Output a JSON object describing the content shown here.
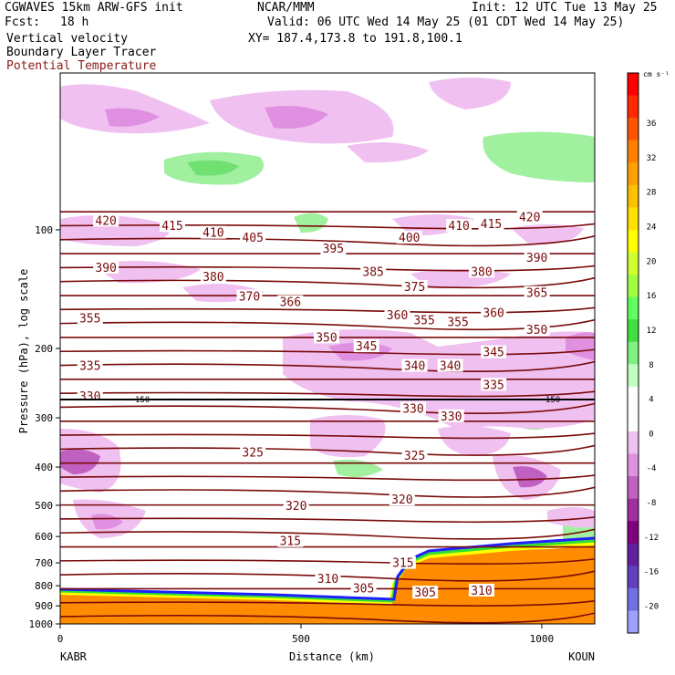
{
  "header": {
    "model": "CGWAVES 15km ARW-GFS init",
    "org": "NCAR/MMM",
    "init": "Init: 12 UTC Tue 13 May 25",
    "fcst_label": "Fcst:",
    "fcst_value": "18 h",
    "valid": "Valid: 06 UTC Wed 14 May 25 (01 CDT Wed 14 May 25)",
    "field1": "Vertical velocity",
    "field2": "Boundary Layer Tracer",
    "field3": "Potential Temperature",
    "xy": "XY= 187.4,173.8 to 191.8,100.1"
  },
  "colors": {
    "theta": "#7a0a0a",
    "tracer": "#ff8c00",
    "field3_text": "#8b1a1a"
  },
  "chart_data": {
    "type": "heatmap",
    "xlabel": "Distance (km)",
    "ylabel": "Pressure (hPa), log scale",
    "x_ticks": [
      "0",
      "500",
      "1000"
    ],
    "y_ticks": [
      "100",
      "200",
      "300",
      "400",
      "500",
      "600",
      "700",
      "800",
      "900",
      "1000"
    ],
    "xlim": [
      0,
      1110
    ],
    "ylim": [
      1000,
      40
    ],
    "y_scale": "log",
    "left_station": "KABR",
    "right_station": "KOUN",
    "colorbar": {
      "unit": "cm s⁻¹",
      "labels": [
        "36",
        "32",
        "28",
        "24",
        "20",
        "16",
        "12",
        "8",
        "4",
        "0",
        "-4",
        "-8",
        "-12",
        "-16",
        "-20"
      ],
      "colors": [
        "#ff0000",
        "#ff2a00",
        "#ff5500",
        "#ff8000",
        "#ffa000",
        "#ffc000",
        "#ffe000",
        "#ffff00",
        "#d0ff30",
        "#a0ff40",
        "#60ff60",
        "#40e040",
        "#80f080",
        "#c0ffc0",
        "#ffffff",
        "#ffffff",
        "#f0c0f0",
        "#e090e0",
        "#c060c0",
        "#a030a0",
        "#800080",
        "#6020a0",
        "#6040c0",
        "#7070e0",
        "#a0a0ff"
      ]
    },
    "theta_labels": [
      {
        "text": "420",
        "x": 95,
        "p": 95
      },
      {
        "text": "415",
        "x": 233,
        "p": 98
      },
      {
        "text": "410",
        "x": 318,
        "p": 102
      },
      {
        "text": "405",
        "x": 400,
        "p": 105
      },
      {
        "text": "400",
        "x": 725,
        "p": 105
      },
      {
        "text": "410",
        "x": 828,
        "p": 98
      },
      {
        "text": "415",
        "x": 895,
        "p": 97
      },
      {
        "text": "420",
        "x": 975,
        "p": 93
      },
      {
        "text": "395",
        "x": 567,
        "p": 112
      },
      {
        "text": "390",
        "x": 95,
        "p": 125
      },
      {
        "text": "380",
        "x": 318,
        "p": 132
      },
      {
        "text": "385",
        "x": 650,
        "p": 128
      },
      {
        "text": "380",
        "x": 875,
        "p": 128
      },
      {
        "text": "390",
        "x": 990,
        "p": 118
      },
      {
        "text": "375",
        "x": 736,
        "p": 140
      },
      {
        "text": "370",
        "x": 393,
        "p": 148
      },
      {
        "text": "366",
        "x": 478,
        "p": 153
      },
      {
        "text": "365",
        "x": 990,
        "p": 145
      },
      {
        "text": "360",
        "x": 700,
        "p": 165
      },
      {
        "text": "360",
        "x": 900,
        "p": 163
      },
      {
        "text": "355",
        "x": 62,
        "p": 168
      },
      {
        "text": "355",
        "x": 756,
        "p": 170
      },
      {
        "text": "355",
        "x": 826,
        "p": 172
      },
      {
        "text": "350",
        "x": 553,
        "p": 188
      },
      {
        "text": "350",
        "x": 990,
        "p": 180
      },
      {
        "text": "345",
        "x": 636,
        "p": 198
      },
      {
        "text": "345",
        "x": 900,
        "p": 205
      },
      {
        "text": "340",
        "x": 736,
        "p": 222
      },
      {
        "text": "340",
        "x": 810,
        "p": 222
      },
      {
        "text": "335",
        "x": 62,
        "p": 222
      },
      {
        "text": "335",
        "x": 900,
        "p": 248
      },
      {
        "text": "330",
        "x": 62,
        "p": 265
      },
      {
        "text": "330",
        "x": 733,
        "p": 285
      },
      {
        "text": "330",
        "x": 812,
        "p": 298
      },
      {
        "text": "325",
        "x": 400,
        "p": 368
      },
      {
        "text": "325",
        "x": 736,
        "p": 375
      },
      {
        "text": "320",
        "x": 490,
        "p": 503
      },
      {
        "text": "320",
        "x": 710,
        "p": 485
      },
      {
        "text": "315",
        "x": 478,
        "p": 618
      },
      {
        "text": "315",
        "x": 712,
        "p": 702
      },
      {
        "text": "310",
        "x": 556,
        "p": 770
      },
      {
        "text": "310",
        "x": 875,
        "p": 825
      },
      {
        "text": "305",
        "x": 630,
        "p": 815
      },
      {
        "text": "305",
        "x": 758,
        "p": 835
      }
    ]
  }
}
